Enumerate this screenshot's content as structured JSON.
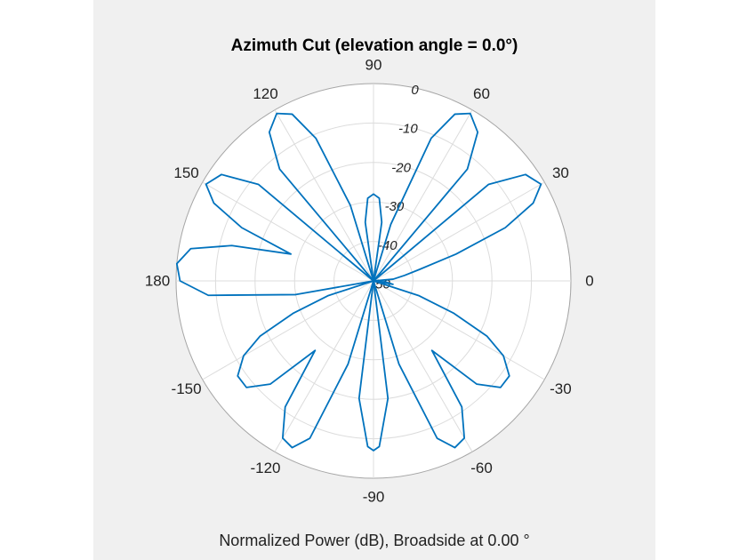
{
  "figure": {
    "title": "Azimuth Cut (elevation angle = 0.0°)",
    "footer": "Normalized Power (dB), Broadside at 0.00 °"
  },
  "chart_data": {
    "type": "polar-line",
    "title": "Azimuth Cut (elevation angle = 0.0°)",
    "xlabel": "Normalized Power (dB), Broadside at 0.00 °",
    "angle_unit": "degrees",
    "angle_ticks": [
      0,
      30,
      60,
      90,
      120,
      150,
      180,
      -150,
      -120,
      -90,
      -60,
      -30
    ],
    "radial_ticks": [
      0,
      -10,
      -20,
      -30,
      -40,
      -50
    ],
    "rlim": [
      -50,
      0
    ],
    "grid": true,
    "series": [
      {
        "color": "#0072bd",
        "angles": [
          0,
          5,
          10,
          14,
          18,
          22,
          26,
          30,
          35,
          40,
          45,
          50,
          55,
          60,
          64,
          68,
          73,
          78,
          82,
          86,
          90,
          94,
          98,
          102,
          107,
          112,
          116,
          120,
          125,
          130,
          135,
          140,
          145,
          150,
          154,
          158,
          162,
          166,
          170,
          175,
          180,
          185,
          190,
          194,
          198,
          202,
          206,
          210,
          215,
          220,
          225,
          230,
          235,
          240,
          244,
          248,
          253,
          258,
          263,
          268,
          270,
          272,
          277,
          282,
          287,
          292,
          296,
          300,
          305,
          310,
          315,
          320,
          325,
          330,
          334,
          338,
          342,
          346,
          350,
          355,
          360
        ],
        "values": [
          -50,
          -45,
          -42,
          -38,
          -28,
          -14,
          -5,
          -1,
          -3,
          -12,
          -50,
          -13,
          -4,
          -1,
          -3,
          -11,
          -35,
          -50,
          -35,
          -29,
          -28,
          -29,
          -35,
          -50,
          -30,
          -11,
          -3,
          -1,
          -4,
          -13,
          -50,
          -12,
          -3,
          -1,
          -5,
          -14,
          -28,
          -13,
          -3,
          0,
          -1,
          -8,
          -30,
          -50,
          -38,
          -28,
          -18,
          -12,
          -8,
          -8,
          -13,
          -27,
          -11,
          -4,
          -3,
          -7,
          -28,
          -50,
          -20,
          -8,
          -7,
          -8,
          -20,
          -50,
          -28,
          -7,
          -3,
          -4,
          -11,
          -27,
          -13,
          -8,
          -8,
          -12,
          -18,
          -28,
          -38,
          -50,
          -45,
          -47,
          -50
        ]
      }
    ]
  }
}
